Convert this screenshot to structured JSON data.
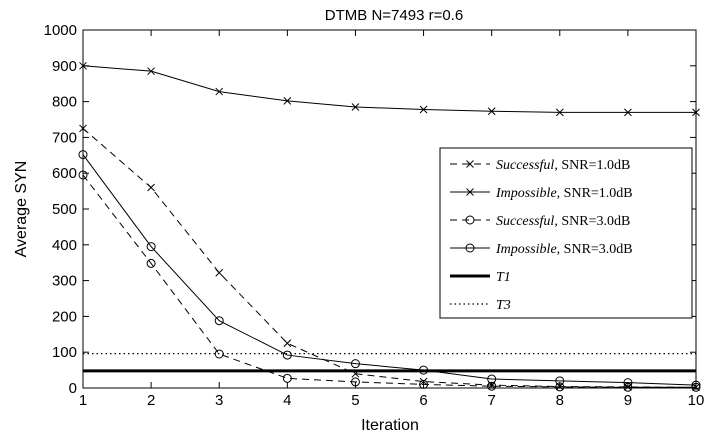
{
  "chart_data": {
    "type": "line",
    "title": "DTMB N=7493 r=0.6",
    "xlabel": "Iteration",
    "ylabel": "Average SYN",
    "xlim": [
      1,
      10
    ],
    "ylim": [
      0,
      1000
    ],
    "xticks": [
      "1",
      "2",
      "3",
      "4",
      "5",
      "6",
      "7",
      "8",
      "9",
      "10"
    ],
    "yticks": [
      "0",
      "100",
      "200",
      "300",
      "400",
      "500",
      "600",
      "700",
      "800",
      "900",
      "1000"
    ],
    "grid": false,
    "legend_position": "right",
    "x": [
      1,
      2,
      3,
      4,
      5,
      6,
      7,
      8,
      9,
      10
    ],
    "series": [
      {
        "name": "Successful, SNR=1.0dB",
        "name_italic": "Successful",
        "name_rest": ", SNR=1.0dB",
        "values": [
          725,
          560,
          322,
          125,
          40,
          18,
          8,
          4,
          3,
          2
        ],
        "line": "dashed",
        "marker": "x",
        "color": "#000000"
      },
      {
        "name": "Impossible, SNR=1.0dB",
        "name_italic": "Impossible",
        "name_rest": ", SNR=1.0dB",
        "values": [
          900,
          885,
          828,
          802,
          785,
          778,
          773,
          770,
          770,
          770
        ],
        "line": "solid",
        "marker": "x",
        "color": "#000000"
      },
      {
        "name": "Successful, SNR=3.0dB",
        "name_italic": "Successful",
        "name_rest": ", SNR=3.0dB",
        "values": [
          595,
          348,
          95,
          27,
          17,
          10,
          5,
          3,
          2,
          2
        ],
        "line": "dashed",
        "marker": "o",
        "color": "#000000"
      },
      {
        "name": "Impossible, SNR=3.0dB",
        "name_italic": "Impossible",
        "name_rest": ", SNR=3.0dB",
        "values": [
          652,
          395,
          188,
          92,
          68,
          50,
          25,
          20,
          15,
          8
        ],
        "line": "solid",
        "marker": "o",
        "color": "#000000"
      },
      {
        "name": "T1",
        "name_italic": "T1",
        "name_rest": "",
        "values": [
          48,
          48,
          48,
          48,
          48,
          48,
          48,
          48,
          48,
          48
        ],
        "line": "thick",
        "marker": "none",
        "color": "#000000"
      },
      {
        "name": "T3",
        "name_italic": "T3",
        "name_rest": "",
        "values": [
          96,
          96,
          96,
          96,
          96,
          96,
          96,
          96,
          96,
          96
        ],
        "line": "dotted",
        "marker": "none",
        "color": "#000000"
      }
    ]
  }
}
